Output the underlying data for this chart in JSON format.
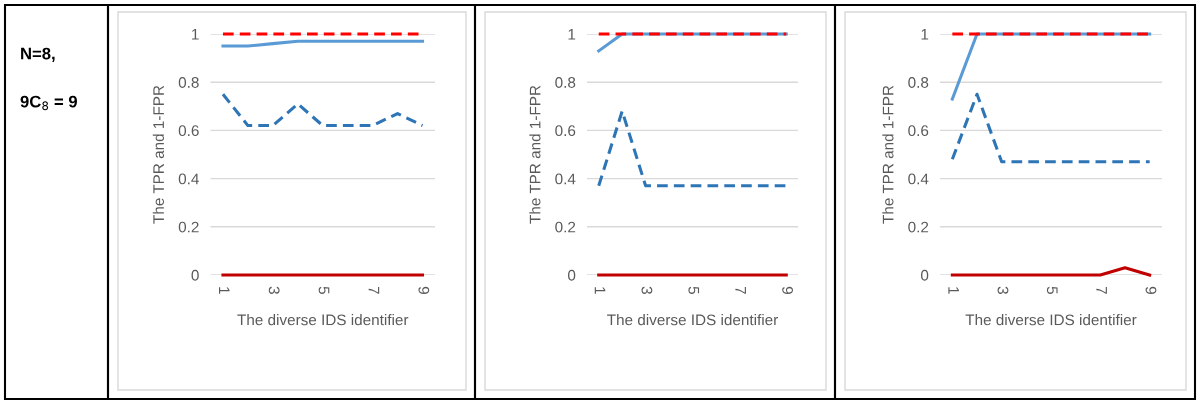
{
  "chart_data": [
    {
      "type": "other",
      "annotations": [
        "N=8,",
        "9C$_{8}$ = 9"
      ]
    },
    {
      "type": "line",
      "ylabel": "The TPR and 1-FPR",
      "xlabel": "The diverse IDS identifier",
      "categories": [
        "1",
        null,
        "3",
        null,
        "5",
        null,
        "7",
        null,
        "9"
      ],
      "ylim": [
        0,
        1
      ],
      "yticks": [
        0,
        0.2,
        0.4,
        0.6,
        0.8,
        1
      ],
      "grid": "y",
      "marker": "none",
      "series": [
        {
          "color": "#ff0000",
          "line_style": "dashed",
          "values": [
            1,
            1,
            1,
            1,
            1,
            1,
            1,
            1,
            1
          ]
        },
        {
          "color": "#5b9bd5",
          "line_style": "solid",
          "values": [
            0.95,
            0.95,
            0.96,
            0.97,
            0.97,
            0.97,
            0.97,
            0.97,
            0.97
          ]
        },
        {
          "color": "#2e75b6",
          "line_style": "dashed",
          "values": [
            0.75,
            0.62,
            0.62,
            0.71,
            0.62,
            0.62,
            0.62,
            0.67,
            0.62
          ]
        },
        {
          "color": "#c00000",
          "line_style": "solid",
          "values": [
            0,
            0,
            0,
            0,
            0,
            0,
            0,
            0,
            0
          ]
        }
      ]
    },
    {
      "type": "line",
      "ylabel": "The TPR and 1-FPR",
      "xlabel": "The diverse IDS identifier",
      "categories": [
        "1",
        null,
        "3",
        null,
        "5",
        null,
        "7",
        null,
        "9"
      ],
      "ylim": [
        0,
        1
      ],
      "yticks": [
        0,
        0.2,
        0.4,
        0.6,
        0.8,
        1
      ],
      "grid": "y",
      "marker": "none",
      "series": [
        {
          "color": "#5b9bd5",
          "line_style": "solid",
          "values": [
            0.93,
            1,
            1,
            1,
            1,
            1,
            1,
            1,
            1
          ]
        },
        {
          "color": "#ff0000",
          "line_style": "dashed",
          "values": [
            1,
            1,
            1,
            1,
            1,
            1,
            1,
            1,
            1
          ]
        },
        {
          "color": "#2e75b6",
          "line_style": "dashed",
          "values": [
            0.37,
            0.68,
            0.37,
            0.37,
            0.37,
            0.37,
            0.37,
            0.37,
            0.37
          ]
        },
        {
          "color": "#c00000",
          "line_style": "solid",
          "values": [
            0,
            0,
            0,
            0,
            0,
            0,
            0,
            0,
            0
          ]
        }
      ]
    },
    {
      "type": "line",
      "ylabel": "The TPR and 1-FPR",
      "xlabel": "The diverse IDS identifier",
      "categories": [
        "1",
        null,
        "3",
        null,
        "5",
        null,
        "7",
        null,
        "9"
      ],
      "ylim": [
        0,
        1
      ],
      "yticks": [
        0,
        0.2,
        0.4,
        0.6,
        0.8,
        1
      ],
      "grid": "y",
      "marker": "none",
      "series": [
        {
          "color": "#5b9bd5",
          "line_style": "solid",
          "values": [
            0.73,
            1,
            1,
            1,
            1,
            1,
            1,
            1,
            1
          ]
        },
        {
          "color": "#ff0000",
          "line_style": "dashed",
          "values": [
            1,
            1,
            1,
            1,
            1,
            1,
            1,
            1,
            1
          ]
        },
        {
          "color": "#2e75b6",
          "line_style": "dashed",
          "values": [
            0.48,
            0.75,
            0.47,
            0.47,
            0.47,
            0.47,
            0.47,
            0.47,
            0.47
          ]
        },
        {
          "color": "#c00000",
          "line_style": "solid",
          "values": [
            0,
            0,
            0,
            0,
            0,
            0,
            0,
            0.03,
            0
          ]
        }
      ]
    }
  ]
}
